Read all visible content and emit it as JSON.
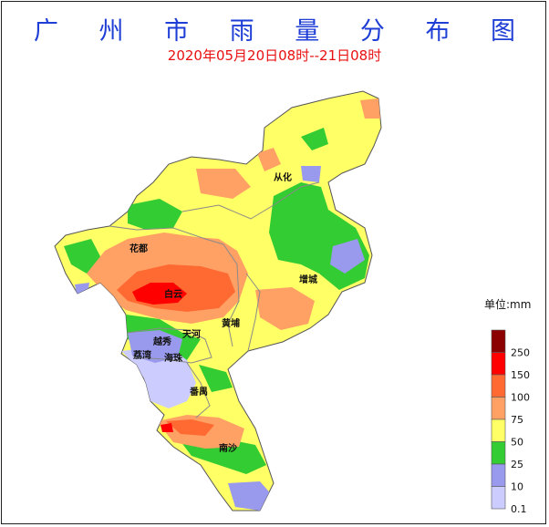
{
  "title": "广 州 市 雨 量 分 布 图",
  "subtitle": "2020年05月20日08时--21日08时",
  "legend": {
    "unit_label": "单位:mm",
    "levels": [
      {
        "label": "250",
        "color": "#8b0000"
      },
      {
        "label": "150",
        "color": "#ff0000"
      },
      {
        "label": "100",
        "color": "#ff6a33"
      },
      {
        "label": "75",
        "color": "#ffa065"
      },
      {
        "label": "50",
        "color": "#ffff66"
      },
      {
        "label": "25",
        "color": "#33cc33"
      },
      {
        "label": "10",
        "color": "#9999ee"
      },
      {
        "label": "0.1",
        "color": "#ccccff"
      }
    ]
  },
  "places": {
    "conghua": "从化",
    "huadu": "花都",
    "zengcheng": "增城",
    "baiyun": "白云",
    "huangpu": "黄埔",
    "tianhe": "天河",
    "yuexiu": "越秀",
    "liwan": "荔湾",
    "haizhu": "海珠",
    "panyu": "番禺",
    "nansha": "南沙"
  },
  "colors": {
    "title": "#1e3ed6",
    "subtitle": "#e81010",
    "boundary": "#8a8a8a"
  }
}
